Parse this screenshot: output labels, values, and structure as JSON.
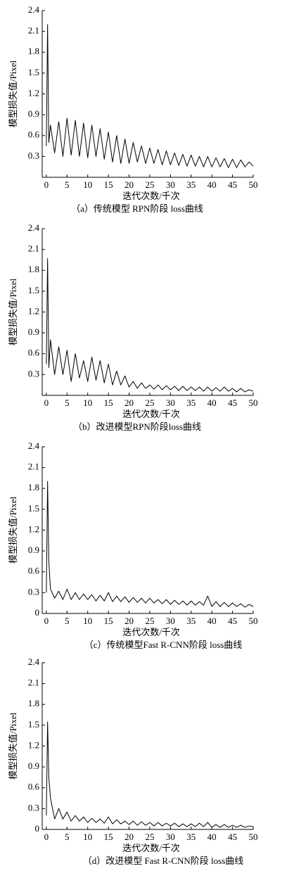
{
  "chart_data": [
    {
      "type": "line",
      "caption": "（a）传统模型 RPN阶段 loss曲线",
      "xlabel": "迭代次数/千次",
      "ylabel": "模型损失值/Pixel",
      "xlim": [
        -1,
        50
      ],
      "ylim": [
        0,
        2.4
      ],
      "xticks": [
        0,
        5,
        10,
        15,
        20,
        25,
        30,
        35,
        40,
        45,
        50
      ],
      "yticks": [
        0.3,
        0.6,
        0.9,
        1.2,
        1.5,
        1.8,
        2.1,
        2.4
      ],
      "color": "#000000",
      "x": [
        0,
        0.3,
        0.6,
        1,
        2,
        3,
        4,
        5,
        6,
        7,
        8,
        9,
        10,
        11,
        12,
        13,
        14,
        15,
        16,
        17,
        18,
        19,
        20,
        21,
        22,
        23,
        24,
        25,
        26,
        27,
        28,
        29,
        30,
        31,
        32,
        33,
        34,
        35,
        36,
        37,
        38,
        39,
        40,
        41,
        42,
        43,
        44,
        45,
        46,
        47,
        48,
        49,
        50
      ],
      "values": [
        0.45,
        2.2,
        0.5,
        0.75,
        0.35,
        0.8,
        0.3,
        0.85,
        0.32,
        0.82,
        0.3,
        0.78,
        0.28,
        0.75,
        0.3,
        0.7,
        0.26,
        0.65,
        0.22,
        0.6,
        0.2,
        0.55,
        0.2,
        0.5,
        0.22,
        0.45,
        0.2,
        0.42,
        0.2,
        0.4,
        0.18,
        0.38,
        0.18,
        0.35,
        0.17,
        0.33,
        0.16,
        0.32,
        0.16,
        0.3,
        0.15,
        0.3,
        0.15,
        0.28,
        0.15,
        0.27,
        0.14,
        0.26,
        0.14,
        0.25,
        0.15,
        0.22,
        0.16
      ]
    },
    {
      "type": "line",
      "caption": "（b）改进模型RPN阶段loss曲线",
      "xlabel": "迭代次数/千次",
      "ylabel": "模型损失值/Pixel",
      "xlim": [
        -1,
        50
      ],
      "ylim": [
        0,
        2.4
      ],
      "xticks": [
        0,
        5,
        10,
        15,
        20,
        25,
        30,
        35,
        40,
        45,
        50
      ],
      "yticks": [
        0.3,
        0.6,
        0.9,
        1.2,
        1.5,
        1.8,
        2.1,
        2.4
      ],
      "color": "#000000",
      "x": [
        0,
        0.3,
        0.6,
        1,
        2,
        3,
        4,
        5,
        6,
        7,
        8,
        9,
        10,
        11,
        12,
        13,
        14,
        15,
        16,
        17,
        18,
        19,
        20,
        21,
        22,
        23,
        24,
        25,
        26,
        27,
        28,
        29,
        30,
        31,
        32,
        33,
        34,
        35,
        36,
        37,
        38,
        39,
        40,
        41,
        42,
        43,
        44,
        45,
        46,
        47,
        48,
        49,
        50
      ],
      "values": [
        0.45,
        1.97,
        0.4,
        0.8,
        0.3,
        0.7,
        0.3,
        0.65,
        0.2,
        0.6,
        0.25,
        0.5,
        0.2,
        0.55,
        0.22,
        0.5,
        0.18,
        0.45,
        0.15,
        0.35,
        0.15,
        0.28,
        0.12,
        0.2,
        0.1,
        0.18,
        0.1,
        0.15,
        0.09,
        0.15,
        0.08,
        0.14,
        0.08,
        0.13,
        0.07,
        0.13,
        0.07,
        0.12,
        0.07,
        0.12,
        0.06,
        0.12,
        0.06,
        0.11,
        0.06,
        0.12,
        0.06,
        0.1,
        0.05,
        0.1,
        0.05,
        0.08,
        0.06
      ]
    },
    {
      "type": "line",
      "caption": "（c）传统模型Fast R-CNN阶段 loss曲线",
      "xlabel": "迭代次数/千次",
      "ylabel": "模型损失值/Pixel",
      "xlim": [
        -1,
        50
      ],
      "ylim": [
        0,
        2.4
      ],
      "xticks": [
        0,
        5,
        10,
        15,
        20,
        25,
        30,
        35,
        40,
        45,
        50
      ],
      "yticks": [
        0,
        0.3,
        0.6,
        0.9,
        1.2,
        1.5,
        1.8,
        2.1,
        2.4
      ],
      "color": "#000000",
      "x": [
        0,
        0.3,
        0.6,
        1,
        2,
        3,
        4,
        5,
        6,
        7,
        8,
        9,
        10,
        11,
        12,
        13,
        14,
        15,
        16,
        17,
        18,
        19,
        20,
        21,
        22,
        23,
        24,
        25,
        26,
        27,
        28,
        29,
        30,
        31,
        32,
        33,
        34,
        35,
        36,
        37,
        38,
        39,
        40,
        41,
        42,
        43,
        44,
        45,
        46,
        47,
        48,
        49,
        50
      ],
      "values": [
        0.3,
        1.9,
        0.75,
        0.35,
        0.22,
        0.32,
        0.2,
        0.35,
        0.2,
        0.3,
        0.2,
        0.28,
        0.2,
        0.27,
        0.18,
        0.26,
        0.18,
        0.3,
        0.17,
        0.25,
        0.17,
        0.24,
        0.16,
        0.23,
        0.16,
        0.22,
        0.15,
        0.22,
        0.15,
        0.2,
        0.14,
        0.2,
        0.13,
        0.19,
        0.13,
        0.18,
        0.12,
        0.18,
        0.12,
        0.17,
        0.12,
        0.25,
        0.1,
        0.17,
        0.1,
        0.16,
        0.1,
        0.15,
        0.1,
        0.14,
        0.09,
        0.13,
        0.1
      ]
    },
    {
      "type": "line",
      "caption": "（d）改进模型 Fast R-CNN阶段 loss曲线",
      "xlabel": "迭代次数/千次",
      "ylabel": "模型损失值/Pixel",
      "xlim": [
        -1,
        50
      ],
      "ylim": [
        0,
        2.4
      ],
      "xticks": [
        0,
        5,
        10,
        15,
        20,
        25,
        30,
        35,
        40,
        45,
        50
      ],
      "yticks": [
        0,
        0.3,
        0.6,
        0.9,
        1.2,
        1.5,
        1.8,
        2.1,
        2.4
      ],
      "color": "#000000",
      "x": [
        0,
        0.3,
        0.6,
        1,
        2,
        3,
        4,
        5,
        6,
        7,
        8,
        9,
        10,
        11,
        12,
        13,
        14,
        15,
        16,
        17,
        18,
        19,
        20,
        21,
        22,
        23,
        24,
        25,
        26,
        27,
        28,
        29,
        30,
        31,
        32,
        33,
        34,
        35,
        36,
        37,
        38,
        39,
        40,
        41,
        42,
        43,
        44,
        45,
        46,
        47,
        48,
        49,
        50
      ],
      "values": [
        0.2,
        1.55,
        0.75,
        0.45,
        0.15,
        0.3,
        0.15,
        0.25,
        0.12,
        0.2,
        0.12,
        0.18,
        0.1,
        0.16,
        0.1,
        0.15,
        0.09,
        0.18,
        0.08,
        0.14,
        0.08,
        0.12,
        0.07,
        0.12,
        0.06,
        0.11,
        0.06,
        0.1,
        0.05,
        0.1,
        0.05,
        0.09,
        0.05,
        0.09,
        0.04,
        0.08,
        0.04,
        0.08,
        0.04,
        0.09,
        0.04,
        0.1,
        0.03,
        0.07,
        0.03,
        0.07,
        0.03,
        0.06,
        0.03,
        0.06,
        0.03,
        0.05,
        0.04
      ]
    }
  ]
}
